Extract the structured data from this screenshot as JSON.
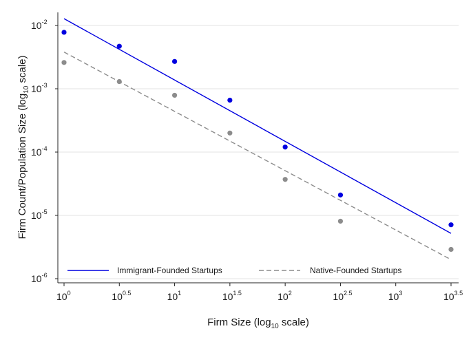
{
  "chart_data": {
    "type": "scatter",
    "xlabel": "Firm Size (log",
    "xlabel_sub": "10",
    "xlabel_suffix": " scale)",
    "ylabel": "Firm Count/Population Size (log",
    "ylabel_sub": "10",
    "ylabel_suffix": " scale)",
    "x_scale": "log10",
    "y_scale": "log10",
    "xlim": [
      1,
      3162.28
    ],
    "ylim": [
      1e-06,
      0.01
    ],
    "x_ticks": [
      {
        "base": "10",
        "exp": "0",
        "value": 1
      },
      {
        "base": "10",
        "exp": "0.5",
        "value": 3.1623
      },
      {
        "base": "10",
        "exp": "1",
        "value": 10
      },
      {
        "base": "10",
        "exp": "1.5",
        "value": 31.623
      },
      {
        "base": "10",
        "exp": "2",
        "value": 100
      },
      {
        "base": "10",
        "exp": "2.5",
        "value": 316.23
      },
      {
        "base": "10",
        "exp": "3",
        "value": 1000
      },
      {
        "base": "10",
        "exp": "3.5",
        "value": 3162.28
      }
    ],
    "y_ticks": [
      {
        "base": "10",
        "exp": "-2",
        "value": 0.01
      },
      {
        "base": "10",
        "exp": "-3",
        "value": 0.001
      },
      {
        "base": "10",
        "exp": "-4",
        "value": 0.0001
      },
      {
        "base": "10",
        "exp": "-5",
        "value": 1e-05
      },
      {
        "base": "10",
        "exp": "-6",
        "value": 1e-06
      }
    ],
    "grid": "horizontal",
    "legend_position": "bottom",
    "series": [
      {
        "name": "Immigrant-Founded Startups",
        "color": "#0000e0",
        "line_style": "solid",
        "x": [
          1,
          3.1623,
          10,
          31.623,
          100,
          316.23,
          3162.28
        ],
        "y": [
          0.0078,
          0.0047,
          0.0027,
          0.00066,
          0.00012,
          2.1e-05,
          7.1e-06
        ],
        "fit": {
          "x": [
            1,
            3162.28
          ],
          "y": [
            0.0128,
            5.2e-06
          ]
        }
      },
      {
        "name": "Native-Founded Startups",
        "color": "#8c8c8c",
        "line_style": "dashed",
        "x": [
          1,
          3.1623,
          10,
          31.623,
          100,
          316.23,
          3162.28
        ],
        "y": [
          0.0026,
          0.0013,
          0.00079,
          0.0002,
          3.7e-05,
          8.1e-06,
          2.9e-06
        ],
        "fit": {
          "x": [
            1,
            3162.28
          ],
          "y": [
            0.0038,
            2e-06
          ]
        }
      }
    ]
  }
}
